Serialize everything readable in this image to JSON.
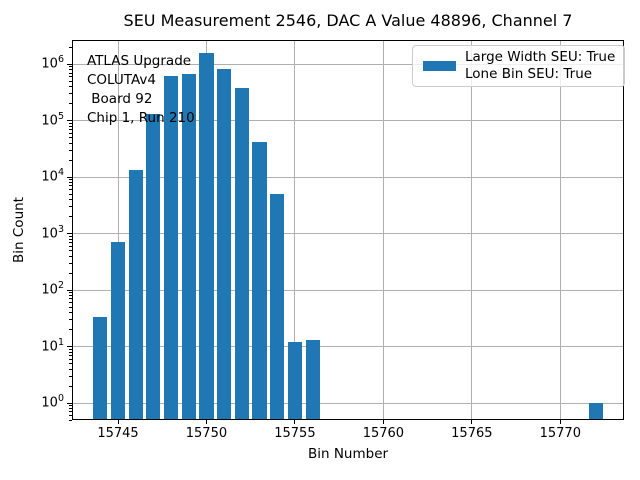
{
  "title": "SEU Measurement 2546, DAC A Value 48896, Channel 7",
  "annotation_lines": [
    "ATLAS Upgrade",
    "COLUTAv4",
    " Board 92",
    "Chip 1, Run 210"
  ],
  "legend": {
    "labels": [
      "Large Width SEU: True",
      "Lone Bin SEU: True"
    ],
    "swatch_color": "#1f77b4",
    "position": "upper right"
  },
  "chart_data": {
    "type": "bar",
    "title": "SEU Measurement 2546, DAC A Value 48896, Channel 7",
    "xlabel": "Bin Number",
    "ylabel": "Bin Count",
    "yscale": "log",
    "grid": true,
    "grid_color": "#b0b0b0",
    "bar_color": "#1f77b4",
    "bar_width_bins": 0.8,
    "x": [
      15744,
      15745,
      15746,
      15747,
      15748,
      15749,
      15750,
      15751,
      15752,
      15753,
      15754,
      15755,
      15756,
      15772
    ],
    "values": [
      34,
      700,
      13500,
      130000,
      620000,
      680000,
      1600000,
      820000,
      380000,
      42000,
      5000,
      12,
      13,
      1
    ],
    "xlim": [
      15742.4,
      15773.6
    ],
    "ylim": [
      0.5,
      2700000
    ],
    "xticks": [
      15745,
      15750,
      15755,
      15760,
      15765,
      15770
    ],
    "ytick_exponents": [
      0,
      1,
      2,
      3,
      4,
      5,
      6
    ]
  }
}
